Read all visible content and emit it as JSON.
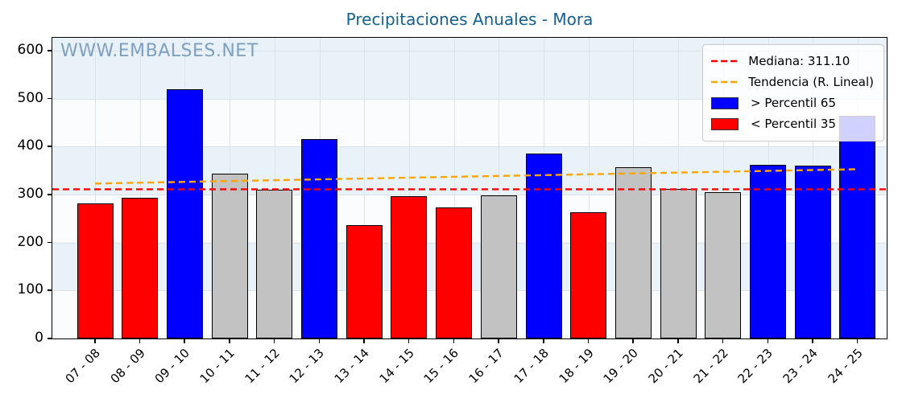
{
  "title": "Precipitaciones Anuales - Mora",
  "watermark": "WWW.EMBALSES.NET",
  "colors": {
    "title": "#16608d",
    "watermark": "#3e709d",
    "above_p65": "#0000ff",
    "below_p35": "#ff0000",
    "between": "#c2c2c2",
    "median_line": "#ff0000",
    "trend_line": "#ffa500",
    "stripe_blue": "#e9f2f8",
    "stripe_white": "#fbfcfd"
  },
  "chart_data": {
    "type": "bar",
    "title": "Precipitaciones Anuales - Mora",
    "xlabel": "",
    "ylabel": "",
    "ylim": [
      0,
      627
    ],
    "yticks": [
      0,
      100,
      200,
      300,
      400,
      500,
      600
    ],
    "grid": true,
    "legend_position": "upper right",
    "categories": [
      "07 - 08",
      "08 - 09",
      "09 - 10",
      "10 - 11",
      "11 - 12",
      "12 - 13",
      "13 - 14",
      "14 - 15",
      "15 - 16",
      "16 - 17",
      "17 - 18",
      "18 - 19",
      "19 - 20",
      "20 - 21",
      "21 - 22",
      "22 - 23",
      "23 - 24",
      "24 - 25"
    ],
    "values": [
      281,
      293,
      519,
      344,
      310,
      416,
      236,
      296,
      274,
      298,
      386,
      264,
      357,
      312,
      305,
      362,
      361,
      464
    ],
    "bar_classes": [
      "below",
      "below",
      "above",
      "mid",
      "mid",
      "above",
      "below",
      "below",
      "below",
      "mid",
      "above",
      "below",
      "mid",
      "mid",
      "mid",
      "above",
      "above",
      "above"
    ],
    "median": 311.1,
    "trend": {
      "start_value": 323,
      "end_value": 353
    },
    "legend": [
      {
        "label": "Mediana: 311.10",
        "type": "line",
        "color": "#ff0000"
      },
      {
        "label": "Tendencia (R. Lineal)",
        "type": "line",
        "color": "#ffa500"
      },
      {
        "label": " > Percentil 65",
        "type": "patch",
        "color": "#0000ff"
      },
      {
        "label": " < Percentil 35",
        "type": "patch",
        "color": "#ff0000"
      }
    ]
  }
}
